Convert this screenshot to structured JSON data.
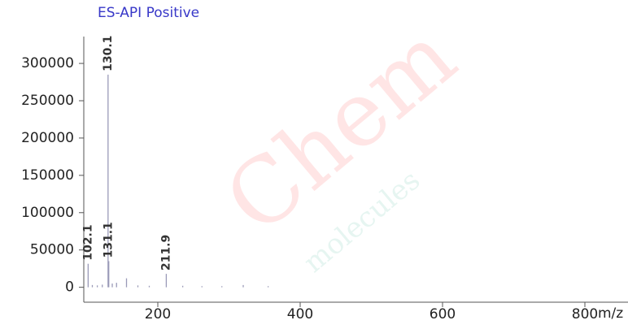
{
  "chart_data": {
    "type": "spectrum",
    "title": "ES-API Positive",
    "x_label": "m/z",
    "watermark": "Chem",
    "watermark_sub": "molecules",
    "x": [
      102.1,
      108,
      115,
      122,
      130.1,
      131.1,
      136,
      142,
      156,
      172,
      188,
      211.9,
      235,
      262,
      290,
      320,
      355
    ],
    "values": [
      31500,
      3000,
      2500,
      3500,
      285000,
      35000,
      5000,
      6000,
      12000,
      2500,
      2000,
      18000,
      2000,
      1500,
      1500,
      3000,
      1500
    ],
    "peak_labels": [
      "102.1",
      null,
      null,
      null,
      "130.1",
      "131.1",
      null,
      null,
      null,
      null,
      null,
      "211.9",
      null,
      null,
      null,
      null,
      null
    ],
    "color": "#9a9ab8",
    "xlim": [
      96,
      860
    ],
    "ylim": [
      -20000,
      336000
    ],
    "xticks": [
      200,
      400,
      600,
      800
    ],
    "yticks": [
      0,
      50000,
      100000,
      150000,
      200000,
      250000,
      300000
    ]
  }
}
